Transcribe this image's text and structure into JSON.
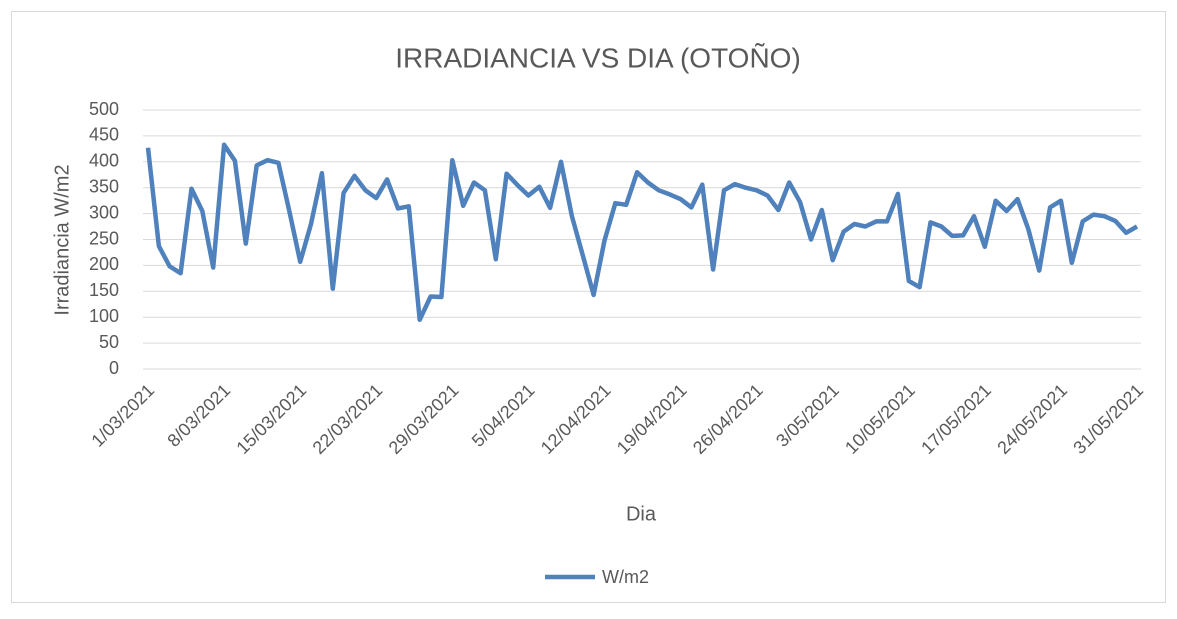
{
  "chart_data": {
    "type": "line",
    "title": "IRRADIANCIA VS DIA (OTOÑO)",
    "xlabel": "Dia",
    "ylabel": "Irradiancia W/m2",
    "categories": [
      "1/03/2021",
      null,
      null,
      null,
      null,
      null,
      null,
      "8/03/2021",
      null,
      null,
      null,
      null,
      null,
      null,
      "15/03/2021",
      null,
      null,
      null,
      null,
      null,
      null,
      "22/03/2021",
      null,
      null,
      null,
      null,
      null,
      null,
      "29/03/2021",
      null,
      null,
      null,
      null,
      null,
      null,
      "5/04/2021",
      null,
      null,
      null,
      null,
      null,
      null,
      "12/04/2021",
      null,
      null,
      null,
      null,
      null,
      null,
      "19/04/2021",
      null,
      null,
      null,
      null,
      null,
      null,
      "26/04/2021",
      null,
      null,
      null,
      null,
      null,
      null,
      "3/05/2021",
      null,
      null,
      null,
      null,
      null,
      null,
      "10/05/2021",
      null,
      null,
      null,
      null,
      null,
      null,
      "17/05/2021",
      null,
      null,
      null,
      null,
      null,
      null,
      "24/05/2021",
      null,
      null,
      null,
      null,
      null,
      null,
      "31/05/2021"
    ],
    "series": [
      {
        "name": "W/m2",
        "color": "#4f81bd",
        "values": [
          427,
          237,
          198,
          185,
          348,
          305,
          196,
          433,
          402,
          242,
          393,
          403,
          398,
          305,
          207,
          280,
          378,
          155,
          340,
          373,
          345,
          330,
          366,
          310,
          314,
          95,
          140,
          139,
          403,
          315,
          360,
          345,
          212,
          377,
          355,
          335,
          352,
          311,
          400,
          295,
          220,
          143,
          248,
          320,
          317,
          380,
          360,
          345,
          337,
          328,
          312,
          356,
          192,
          345,
          357,
          350,
          345,
          335,
          307,
          360,
          322,
          250,
          307,
          210,
          265,
          280,
          275,
          285,
          285,
          338,
          170,
          158,
          283,
          275,
          257,
          258,
          295,
          236,
          325,
          305,
          328,
          270,
          190,
          312,
          325,
          205,
          285,
          298,
          295,
          286,
          263,
          275
        ]
      }
    ],
    "ylim": [
      0,
      500
    ],
    "yticks": [
      0,
      50,
      100,
      150,
      200,
      250,
      300,
      350,
      400,
      450,
      500
    ],
    "grid": true,
    "legend": "bottom"
  }
}
